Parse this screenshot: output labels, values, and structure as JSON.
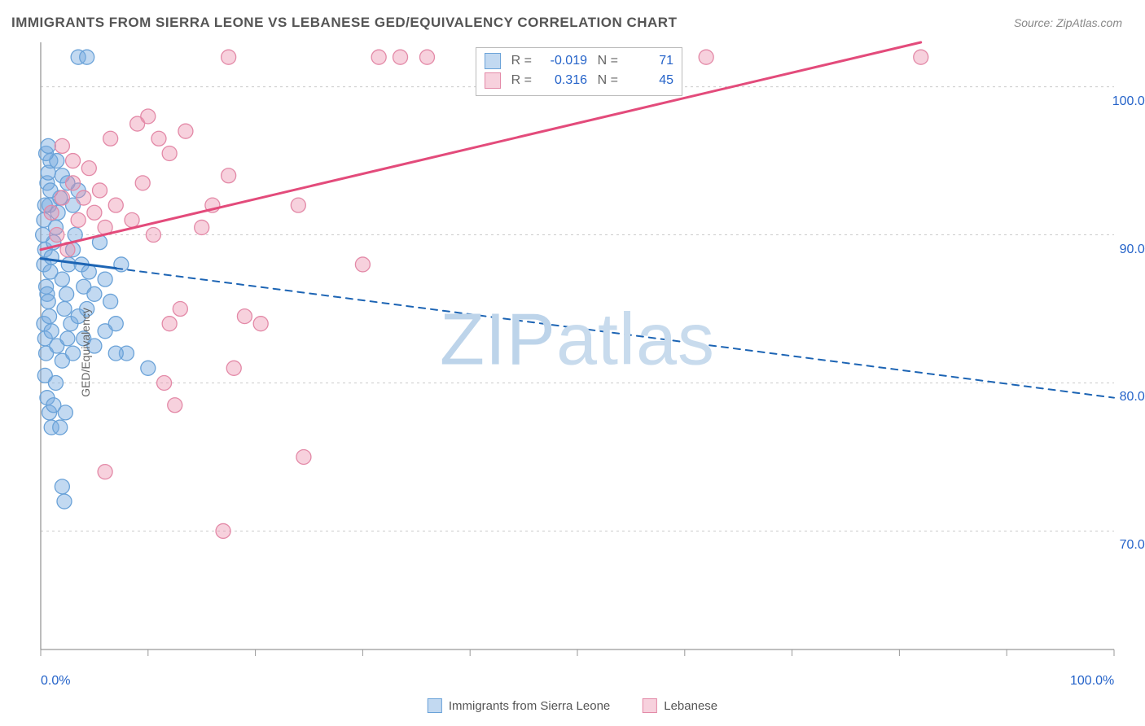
{
  "title": "IMMIGRANTS FROM SIERRA LEONE VS LEBANESE GED/EQUIVALENCY CORRELATION CHART",
  "source": "Source: ZipAtlas.com",
  "watermark": "ZIPatlas",
  "ylabel": "GED/Equivalency",
  "chart": {
    "type": "scatter",
    "xlim": [
      0,
      100
    ],
    "ylim": [
      62,
      103
    ],
    "x_ticks": [
      0,
      10,
      20,
      30,
      40,
      50,
      60,
      70,
      80,
      90,
      100
    ],
    "x_tick_labels": {
      "0": "0.0%",
      "100": "100.0%"
    },
    "y_grid": [
      70,
      80,
      90,
      100
    ],
    "y_tick_labels": {
      "70": "70.0%",
      "80": "80.0%",
      "90": "90.0%",
      "100": "100.0%"
    },
    "axis_color": "#999999",
    "grid_color": "#cccccc",
    "label_color": "#2563c9",
    "background_color": "#ffffff",
    "marker_radius": 9,
    "series": [
      {
        "name": "Immigrants from Sierra Leone",
        "R": "-0.019",
        "N": "71",
        "fill": "rgba(120,170,225,0.45)",
        "stroke": "#6aa2d8",
        "trend": {
          "x1": 0,
          "y1": 88.4,
          "x2": 100,
          "y2": 79.0,
          "solid_until_x": 7,
          "color": "#1c64b4",
          "width": 3
        },
        "points": [
          [
            0.3,
            88.0
          ],
          [
            0.4,
            89.0
          ],
          [
            0.5,
            86.5
          ],
          [
            0.6,
            93.5
          ],
          [
            0.7,
            94.2
          ],
          [
            0.8,
            92.0
          ],
          [
            0.9,
            95.0
          ],
          [
            0.3,
            84.0
          ],
          [
            0.4,
            83.0
          ],
          [
            0.5,
            82.0
          ],
          [
            0.6,
            86.0
          ],
          [
            0.7,
            85.5
          ],
          [
            0.8,
            84.5
          ],
          [
            0.9,
            87.5
          ],
          [
            0.4,
            80.5
          ],
          [
            0.6,
            79.0
          ],
          [
            0.8,
            78.0
          ],
          [
            1.0,
            77.0
          ],
          [
            1.2,
            78.5
          ],
          [
            1.4,
            80.0
          ],
          [
            1.0,
            88.5
          ],
          [
            1.2,
            89.5
          ],
          [
            1.4,
            90.5
          ],
          [
            1.6,
            91.5
          ],
          [
            1.8,
            92.5
          ],
          [
            2.0,
            87.0
          ],
          [
            2.2,
            85.0
          ],
          [
            2.4,
            86.0
          ],
          [
            2.6,
            88.0
          ],
          [
            2.8,
            84.0
          ],
          [
            3.0,
            89.0
          ],
          [
            3.2,
            90.0
          ],
          [
            3.5,
            93.0
          ],
          [
            3.8,
            88.0
          ],
          [
            4.0,
            86.5
          ],
          [
            4.3,
            85.0
          ],
          [
            4.5,
            87.5
          ],
          [
            5.0,
            86.0
          ],
          [
            5.5,
            89.5
          ],
          [
            6.0,
            87.0
          ],
          [
            6.5,
            85.5
          ],
          [
            7.0,
            84.0
          ],
          [
            7.5,
            88.0
          ],
          [
            8.0,
            82.0
          ],
          [
            1.5,
            95.0
          ],
          [
            2.0,
            94.0
          ],
          [
            2.5,
            93.5
          ],
          [
            3.0,
            92.0
          ],
          [
            1.0,
            83.5
          ],
          [
            1.5,
            82.5
          ],
          [
            2.0,
            81.5
          ],
          [
            2.5,
            83.0
          ],
          [
            3.0,
            82.0
          ],
          [
            3.5,
            84.5
          ],
          [
            4.0,
            83.0
          ],
          [
            5.0,
            82.5
          ],
          [
            6.0,
            83.5
          ],
          [
            7.0,
            82.0
          ],
          [
            1.8,
            77.0
          ],
          [
            2.3,
            78.0
          ],
          [
            10.0,
            81.0
          ],
          [
            2.0,
            73.0
          ],
          [
            2.2,
            72.0
          ],
          [
            3.5,
            102.0
          ],
          [
            4.3,
            102.0
          ],
          [
            0.5,
            95.5
          ],
          [
            0.7,
            96.0
          ],
          [
            0.9,
            93.0
          ],
          [
            0.2,
            90.0
          ],
          [
            0.3,
            91.0
          ],
          [
            0.4,
            92.0
          ]
        ]
      },
      {
        "name": "Lebanese",
        "R": "0.316",
        "N": "45",
        "fill": "rgba(235,140,170,0.40)",
        "stroke": "#e389a7",
        "trend": {
          "x1": 0,
          "y1": 89.0,
          "x2": 82,
          "y2": 103.0,
          "solid_until_x": 82,
          "color": "#e34b7b",
          "width": 3
        },
        "points": [
          [
            1.5,
            90.0
          ],
          [
            2.5,
            89.0
          ],
          [
            3.5,
            91.0
          ],
          [
            4.0,
            92.5
          ],
          [
            5.0,
            91.5
          ],
          [
            5.5,
            93.0
          ],
          [
            6.0,
            90.5
          ],
          [
            7.0,
            92.0
          ],
          [
            8.5,
            91.0
          ],
          [
            9.5,
            93.5
          ],
          [
            10.5,
            90.0
          ],
          [
            2.0,
            96.0
          ],
          [
            3.0,
            95.0
          ],
          [
            4.5,
            94.5
          ],
          [
            6.5,
            96.5
          ],
          [
            9.0,
            97.5
          ],
          [
            12.0,
            95.5
          ],
          [
            10.0,
            98.0
          ],
          [
            11.0,
            96.5
          ],
          [
            13.5,
            97.0
          ],
          [
            16.0,
            92.0
          ],
          [
            15.0,
            90.5
          ],
          [
            17.5,
            94.0
          ],
          [
            12.0,
            84.0
          ],
          [
            13.0,
            85.0
          ],
          [
            19.0,
            84.5
          ],
          [
            20.5,
            84.0
          ],
          [
            18.0,
            81.0
          ],
          [
            24.0,
            92.0
          ],
          [
            30.0,
            88.0
          ],
          [
            6.0,
            74.0
          ],
          [
            11.5,
            80.0
          ],
          [
            12.5,
            78.5
          ],
          [
            24.5,
            75.0
          ],
          [
            17.0,
            70.0
          ],
          [
            31.5,
            102.0
          ],
          [
            33.5,
            102.0
          ],
          [
            36.0,
            102.0
          ],
          [
            17.5,
            102.0
          ],
          [
            44.0,
            102.0
          ],
          [
            62.0,
            102.0
          ],
          [
            82.0,
            102.0
          ],
          [
            1.0,
            91.5
          ],
          [
            2.0,
            92.5
          ],
          [
            3.0,
            93.5
          ]
        ]
      }
    ]
  },
  "legend_bottom": [
    {
      "label": "Immigrants from Sierra Leone",
      "fill": "rgba(120,170,225,0.45)",
      "stroke": "#6aa2d8"
    },
    {
      "label": "Lebanese",
      "fill": "rgba(235,140,170,0.40)",
      "stroke": "#e389a7"
    }
  ]
}
